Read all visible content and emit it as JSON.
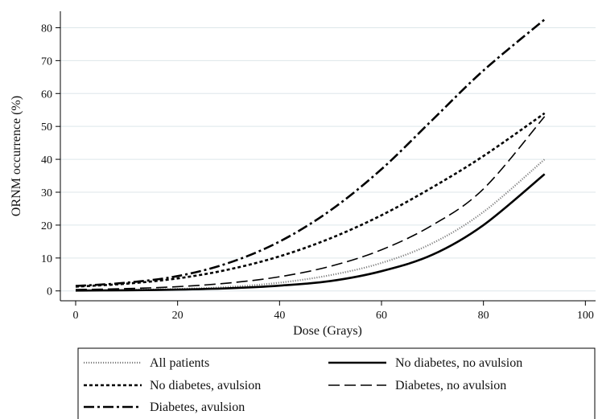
{
  "chart_data": {
    "type": "line",
    "xlabel": "Dose (Grays)",
    "ylabel": "ORNM occurrence (%)",
    "xlim": [
      -3,
      102
    ],
    "ylim": [
      -3,
      85
    ],
    "xticks": [
      0,
      20,
      40,
      60,
      80,
      100
    ],
    "yticks": [
      0,
      10,
      20,
      30,
      40,
      50,
      60,
      70,
      80
    ],
    "grid": "horizontal",
    "legend_position": "bottom",
    "series": [
      {
        "name": "All patients",
        "style": "dotted",
        "color": "#808080",
        "x": [
          0,
          10,
          20,
          30,
          40,
          50,
          60,
          70,
          80,
          92
        ],
        "y": [
          0.1,
          0.3,
          0.6,
          1.2,
          2.5,
          4.8,
          8.5,
          14.5,
          24,
          40
        ]
      },
      {
        "name": "No diabetes, no avulsion",
        "style": "solid",
        "color": "#000000",
        "x": [
          0,
          10,
          20,
          30,
          40,
          50,
          60,
          70,
          80,
          92
        ],
        "y": [
          0.1,
          0.2,
          0.4,
          0.8,
          1.6,
          3,
          6,
          11,
          20,
          35.5
        ]
      },
      {
        "name": "No diabetes, avulsion",
        "style": "short-dash",
        "color": "#000000",
        "x": [
          0,
          10,
          20,
          30,
          40,
          50,
          60,
          70,
          80,
          92
        ],
        "y": [
          1.3,
          2.2,
          3.8,
          6.5,
          10.5,
          16,
          23,
          31.5,
          41,
          54
        ]
      },
      {
        "name": "Diabetes, no avulsion",
        "style": "long-dash",
        "color": "#000000",
        "x": [
          0,
          10,
          20,
          30,
          40,
          50,
          60,
          70,
          80,
          92
        ],
        "y": [
          0.4,
          0.7,
          1.3,
          2.4,
          4.3,
          7.5,
          12.5,
          20,
          31,
          53
        ]
      },
      {
        "name": "Diabetes, avulsion",
        "style": "dash-dot",
        "color": "#000000",
        "x": [
          0,
          10,
          20,
          30,
          40,
          50,
          60,
          70,
          80,
          92
        ],
        "y": [
          1.5,
          2.5,
          4.5,
          8.5,
          15,
          24.5,
          37,
          52,
          67,
          82.5
        ]
      }
    ]
  }
}
